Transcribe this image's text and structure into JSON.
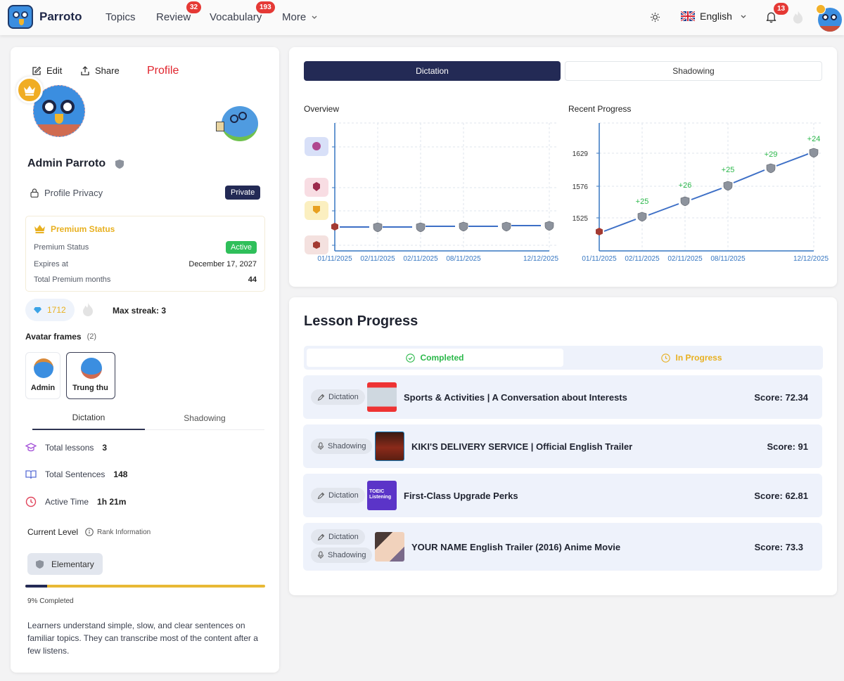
{
  "header": {
    "brand": "Parroto",
    "nav": [
      {
        "label": "Topics"
      },
      {
        "label": "Review",
        "badge": "32"
      },
      {
        "label": "Vocabulary",
        "badge": "193"
      },
      {
        "label": "More",
        "icon": "chevron-down-icon"
      }
    ],
    "theme_icon": "sun-icon",
    "language": {
      "label": "English",
      "flag": "uk-flag-icon"
    },
    "notifications": {
      "icon": "bell-icon",
      "badge": "13"
    },
    "streak_icon": "flame-icon",
    "avatar_badge_icon": "crown-icon"
  },
  "profile": {
    "edit_label": "Edit",
    "share_label": "Share",
    "section_title": "Profile",
    "name": "Admin Parroto",
    "privacy_label": "Profile Privacy",
    "privacy_value": "Private",
    "premium": {
      "title": "Premium Status",
      "rows": [
        {
          "label": "Premium Status",
          "value": "Active"
        },
        {
          "label": "Expires at",
          "value": "December 17, 2027"
        },
        {
          "label": "Total Premium months",
          "value": "44"
        }
      ]
    },
    "gems": "1712",
    "max_streak": "Max streak: 3",
    "avatar_frames_label": "Avatar frames",
    "avatar_frames_count": "(2)",
    "avatar_frames": [
      {
        "label": "Admin",
        "selected": false
      },
      {
        "label": "Trung thu",
        "selected": true
      }
    ],
    "tabs": [
      {
        "label": "Dictation",
        "active": true
      },
      {
        "label": "Shadowing",
        "active": false
      }
    ],
    "stats": [
      {
        "icon": "graduation-cap-icon",
        "label": "Total lessons",
        "value": "3",
        "color": "#a452d8"
      },
      {
        "icon": "book-open-icon",
        "label": "Total Sentences",
        "value": "148",
        "color": "#5b6fd6"
      },
      {
        "icon": "clock-icon",
        "label": "Active Time",
        "value": "1h 21m",
        "color": "#e0445b"
      }
    ],
    "current_level_label": "Current Level",
    "rank_info_label": "Rank Information",
    "level": "Elementary",
    "progress_pct": 9,
    "progress_label": "9% Completed",
    "level_description": "Learners understand simple, slow, and clear sentences on familiar topics. They can transcribe most of the content after a few listens."
  },
  "charts_card": {
    "tabs": [
      {
        "label": "Dictation",
        "active": true
      },
      {
        "label": "Shadowing",
        "active": false
      }
    ],
    "overview_title": "Overview",
    "recent_title": "Recent Progress"
  },
  "chart_data": [
    {
      "type": "line",
      "title": "Overview",
      "x": [
        "01/11/2025",
        "02/11/2025",
        "02/11/2025",
        "08/11/2025",
        "",
        "12/12/2025"
      ],
      "y_ticks": [
        "rank-badge-purple",
        "rank-badge-crimson",
        "rank-badge-gold",
        "rank-badge-red"
      ],
      "series": [
        {
          "name": "Rank",
          "values": [
            "red",
            "silver",
            "silver",
            "silver",
            "silver",
            "silver"
          ]
        }
      ],
      "grid": true
    },
    {
      "type": "line",
      "title": "Recent Progress",
      "x": [
        "01/11/2025",
        "02/11/2025",
        "02/11/2025",
        "08/11/2025",
        "",
        "12/12/2025"
      ],
      "y_ticks": [
        1525,
        1576,
        1629
      ],
      "series": [
        {
          "name": "Score",
          "values": [
            1500,
            1525,
            1551,
            1576,
            1605,
            1629
          ]
        }
      ],
      "annotations": [
        "",
        "+25",
        "+26",
        "+25",
        "+29",
        "+24"
      ],
      "grid": true
    }
  ],
  "lesson_progress": {
    "title": "Lesson Progress",
    "tabs": [
      {
        "label": "Completed",
        "active": true,
        "color": "#2bb84a"
      },
      {
        "label": "In Progress",
        "active": false,
        "color": "#e8b020"
      }
    ],
    "items": [
      {
        "types": [
          "Dictation"
        ],
        "title": "Sports & Activities | A Conversation about Interests",
        "score": "Score: 72.34"
      },
      {
        "types": [
          "Shadowing"
        ],
        "title": "KIKI'S DELIVERY SERVICE | Official English Trailer",
        "score": "Score: 91"
      },
      {
        "types": [
          "Dictation"
        ],
        "title": "First-Class Upgrade Perks",
        "score": "Score: 62.81",
        "thumb_text": "TOEIC Listening"
      },
      {
        "types": [
          "Dictation",
          "Shadowing"
        ],
        "title": "YOUR NAME English Trailer (2016) Anime Movie",
        "score": "Score: 73.3"
      }
    ]
  },
  "colors": {
    "navy": "#232a55",
    "premium_gold": "#e8b020",
    "active_green": "#2fbf5a",
    "profile_red": "#e53935",
    "chart_blue": "#3d6fc6"
  }
}
